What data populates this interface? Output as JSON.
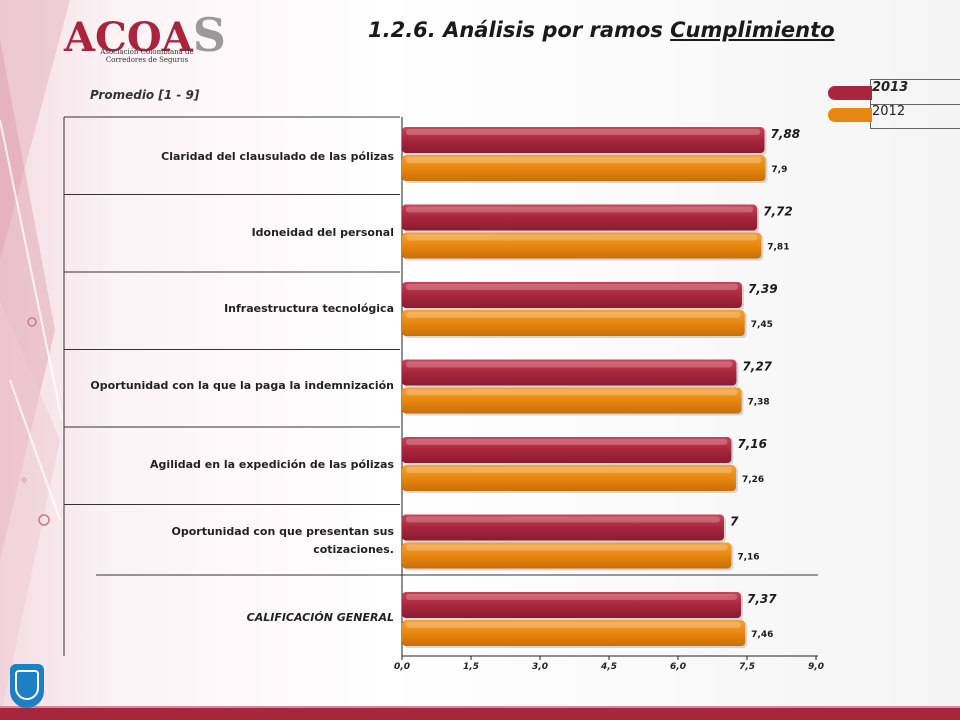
{
  "logo": {
    "word_main": "ACOA",
    "word_tail": "S",
    "sub_line1": "Asociación Colombiana de",
    "sub_line2": "Corredores de Seguros"
  },
  "title": {
    "prefix": "1.2.6. Análisis por ramos ",
    "underlined": "Cumplimiento"
  },
  "chart_data": {
    "type": "bar",
    "orientation": "horizontal",
    "subtitle": "Promedio  [1 - 9]",
    "categories": [
      "Claridad del clausulado de las pólizas",
      "Idoneidad del personal",
      "Infraestructura tecnológica",
      "Oportunidad con la que la paga la indemnización",
      "Agilidad en la expedición de las pólizas",
      "Oportunidad con que presentan sus cotizaciones.",
      "CALIFICACIÓN GENERAL"
    ],
    "series": [
      {
        "name": "2013",
        "color": "#a8263c",
        "values": [
          7.88,
          7.72,
          7.39,
          7.27,
          7.16,
          7,
          7.37
        ],
        "labels": [
          "7,88",
          "7,72",
          "7,39",
          "7,27",
          "7,16",
          "7",
          "7,37"
        ]
      },
      {
        "name": "2012",
        "color": "#e8870f",
        "values": [
          7.9,
          7.81,
          7.45,
          7.38,
          7.26,
          7.16,
          7.46
        ],
        "labels": [
          "7,9",
          "7,81",
          "7,45",
          "7,38",
          "7,26",
          "7,16",
          "7,46"
        ]
      }
    ],
    "xlim": [
      0,
      9
    ],
    "xticks": [
      0,
      1.5,
      3,
      4.5,
      6,
      7.5,
      9
    ],
    "xtick_labels": [
      "0,0",
      "1,5",
      "3,0",
      "4,5",
      "6,0",
      "7,5",
      "9,0"
    ],
    "legend": "top-right",
    "grid": false
  }
}
